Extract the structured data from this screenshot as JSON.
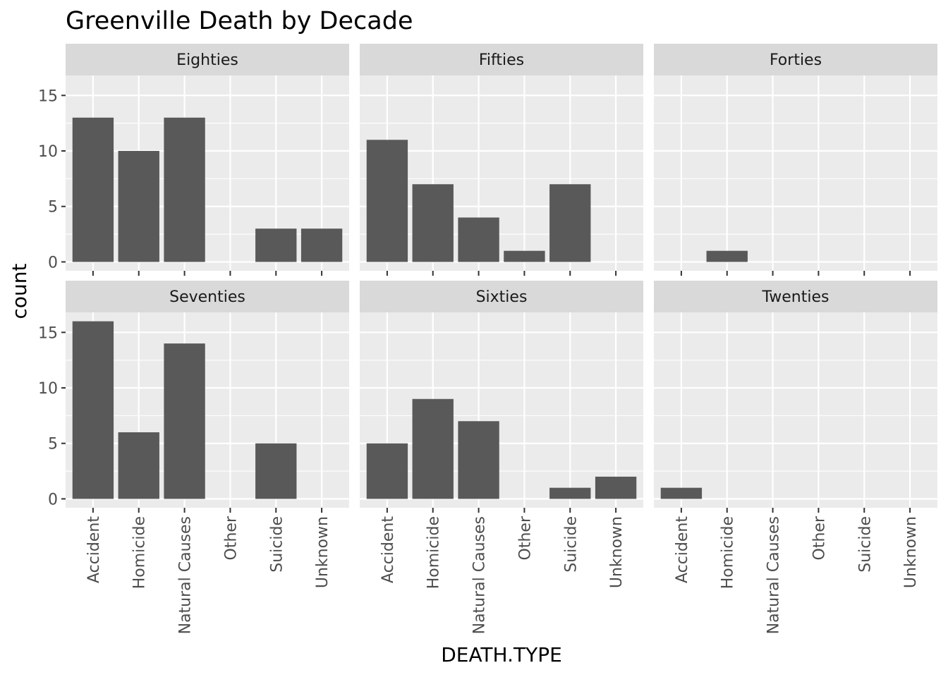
{
  "chart_data": {
    "type": "bar",
    "title": "Greenville Death by Decade",
    "xlabel": "DEATH.TYPE",
    "ylabel": "count",
    "categories": [
      "Accident",
      "Homicide",
      "Natural Causes",
      "Other",
      "Suicide",
      "Unknown"
    ],
    "y_ticks": [
      0,
      5,
      10,
      15
    ],
    "ylim": [
      0,
      16
    ],
    "grid": true,
    "bar_color": "#595959",
    "panel_background": "#ebebeb",
    "strip_background": "#d9d9d9",
    "facets": [
      {
        "name": "Eighties",
        "values": [
          13,
          10,
          13,
          0,
          3,
          3
        ]
      },
      {
        "name": "Fifties",
        "values": [
          11,
          7,
          4,
          1,
          7,
          0
        ]
      },
      {
        "name": "Forties",
        "values": [
          0,
          1,
          0,
          0,
          0,
          0
        ]
      },
      {
        "name": "Seventies",
        "values": [
          16,
          6,
          14,
          0,
          5,
          0
        ]
      },
      {
        "name": "Sixties",
        "values": [
          5,
          9,
          7,
          0,
          1,
          2
        ]
      },
      {
        "name": "Twenties",
        "values": [
          1,
          0,
          0,
          0,
          0,
          0
        ]
      }
    ]
  }
}
